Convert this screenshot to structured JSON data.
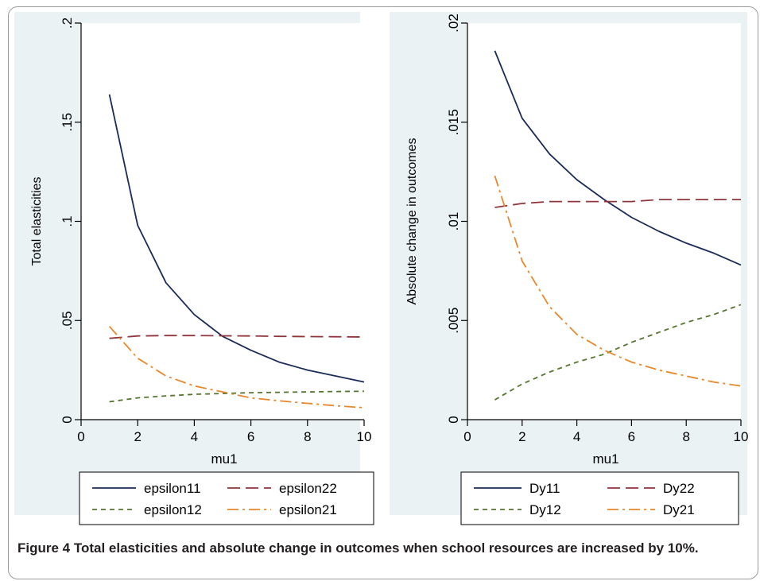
{
  "caption": "Figure 4 Total elasticities and absolute change in outcomes when school resources are increased by 10%.",
  "colors": {
    "panel_bg": "#eaf2f3",
    "plot_bg": "#ffffff",
    "axis": "#000000",
    "series_navy": "#1a2b57",
    "series_maroon": "#90353b",
    "series_green": "#55752f",
    "series_orange": "#e8872b"
  },
  "chart_data": [
    {
      "type": "line",
      "xlabel": "mu1",
      "ylabel": "Total elasticities",
      "xlim": [
        0,
        10
      ],
      "ylim": [
        0,
        0.2
      ],
      "xticks": [
        0,
        2,
        4,
        6,
        8,
        10
      ],
      "xtick_labels": [
        "0",
        "2",
        "4",
        "6",
        "8",
        "10"
      ],
      "yticks": [
        0,
        0.05,
        0.1,
        0.15,
        0.2
      ],
      "ytick_labels": [
        "0",
        ".05",
        ".1",
        ".15",
        ".2"
      ],
      "grid": false,
      "legend_position": "bottom",
      "x": [
        1,
        2,
        3,
        4,
        5,
        6,
        7,
        8,
        9,
        10
      ],
      "series": [
        {
          "name": "epsilon11",
          "style": "solid",
          "color": "#1a2b57",
          "values": [
            0.164,
            0.098,
            0.069,
            0.053,
            0.042,
            0.035,
            0.029,
            0.025,
            0.022,
            0.019
          ]
        },
        {
          "name": "epsilon22",
          "style": "longdash",
          "color": "#90353b",
          "values": [
            0.041,
            0.0422,
            0.0424,
            0.0424,
            0.0423,
            0.0422,
            0.042,
            0.0419,
            0.0418,
            0.0417
          ]
        },
        {
          "name": "epsilon12",
          "style": "shortdash",
          "color": "#55752f",
          "values": [
            0.009,
            0.011,
            0.012,
            0.0128,
            0.0132,
            0.0136,
            0.0138,
            0.014,
            0.0142,
            0.0143
          ]
        },
        {
          "name": "epsilon21",
          "style": "dashdot",
          "color": "#e8872b",
          "values": [
            0.047,
            0.031,
            0.022,
            0.017,
            0.014,
            0.011,
            0.0095,
            0.0082,
            0.007,
            0.006
          ]
        }
      ]
    },
    {
      "type": "line",
      "xlabel": "mu1",
      "ylabel": "Absolute change in outcomes",
      "xlim": [
        0,
        10
      ],
      "ylim": [
        0,
        0.02
      ],
      "xticks": [
        0,
        2,
        4,
        6,
        8,
        10
      ],
      "xtick_labels": [
        "0",
        "2",
        "4",
        "6",
        "8",
        "10"
      ],
      "yticks": [
        0,
        0.005,
        0.01,
        0.015,
        0.02
      ],
      "ytick_labels": [
        "0",
        ".005",
        ".01",
        ".015",
        ".02"
      ],
      "grid": false,
      "legend_position": "bottom",
      "x": [
        1,
        2,
        3,
        4,
        5,
        6,
        7,
        8,
        9,
        10
      ],
      "series": [
        {
          "name": "Dy11",
          "style": "solid",
          "color": "#1a2b57",
          "values": [
            0.0186,
            0.0152,
            0.0134,
            0.0121,
            0.0111,
            0.0102,
            0.0095,
            0.0089,
            0.0084,
            0.0078
          ]
        },
        {
          "name": "Dy22",
          "style": "longdash",
          "color": "#90353b",
          "values": [
            0.0107,
            0.0109,
            0.011,
            0.011,
            0.011,
            0.011,
            0.0111,
            0.0111,
            0.0111,
            0.0111
          ]
        },
        {
          "name": "Dy12",
          "style": "shortdash",
          "color": "#55752f",
          "values": [
            0.001,
            0.0018,
            0.0024,
            0.0029,
            0.0033,
            0.0039,
            0.0044,
            0.0049,
            0.0053,
            0.0058
          ]
        },
        {
          "name": "Dy21",
          "style": "dashdot",
          "color": "#e8872b",
          "values": [
            0.0123,
            0.008,
            0.0057,
            0.0043,
            0.0035,
            0.0029,
            0.0025,
            0.0022,
            0.0019,
            0.0017
          ]
        }
      ]
    }
  ]
}
